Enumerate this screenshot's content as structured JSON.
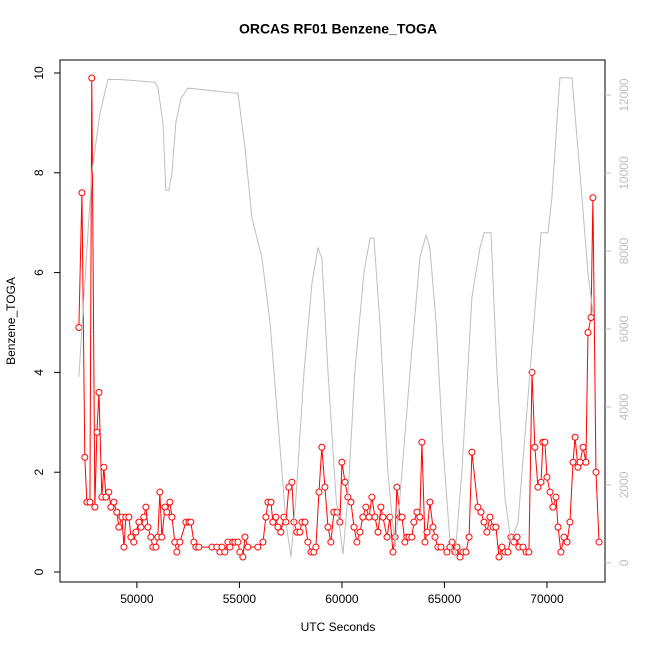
{
  "chart_data": {
    "type": "line",
    "title": "ORCAS RF01 Benzene_TOGA",
    "xlabel": "UTC Seconds",
    "ylabel": "Benzene_TOGA",
    "xlim": [
      46250,
      72830
    ],
    "ylim": [
      -0.2,
      10.26
    ],
    "y2lim": [
      -490,
      12900
    ],
    "xticks": [
      50000,
      55000,
      60000,
      65000,
      70000
    ],
    "yticks": [
      0,
      2,
      4,
      6,
      8,
      10
    ],
    "y2ticks": [
      0,
      2000,
      4000,
      6000,
      8000,
      10000,
      12000
    ],
    "series": [
      {
        "color": "#ff0000",
        "marker": "circle",
        "x": [
          47170,
          47320,
          47460,
          47560,
          47710,
          47800,
          47950,
          48050,
          48150,
          48290,
          48390,
          48490,
          48630,
          48730,
          48880,
          49020,
          49120,
          49270,
          49370,
          49460,
          49610,
          49710,
          49850,
          49950,
          50100,
          50200,
          50340,
          50440,
          50540,
          50680,
          50780,
          50930,
          51020,
          51120,
          51220,
          51370,
          51460,
          51610,
          51710,
          51850,
          51950,
          52100,
          52390,
          52540,
          52630,
          52780,
          52880,
          53020,
          53660,
          53900,
          54050,
          54150,
          54290,
          54440,
          54540,
          54680,
          54780,
          54930,
          55020,
          55170,
          55270,
          55410,
          55900,
          56150,
          56290,
          56390,
          56540,
          56630,
          56780,
          56880,
          57020,
          57170,
          57270,
          57410,
          57560,
          57660,
          57800,
          57950,
          58050,
          58200,
          58340,
          58490,
          58630,
          58730,
          58880,
          59020,
          59170,
          59320,
          59460,
          59610,
          59760,
          59900,
          60000,
          60150,
          60290,
          60440,
          60590,
          60730,
          60880,
          61020,
          61170,
          61320,
          61460,
          61610,
          61760,
          61900,
          62000,
          62200,
          62340,
          62490,
          62590,
          62680,
          62830,
          62930,
          63070,
          63170,
          63270,
          63410,
          63510,
          63660,
          63800,
          63900,
          64050,
          64150,
          64290,
          64440,
          64540,
          64680,
          64830,
          65120,
          65270,
          65370,
          65510,
          65610,
          65760,
          65900,
          66050,
          66200,
          66340,
          66630,
          66780,
          66930,
          67070,
          67220,
          67370,
          67510,
          67660,
          67800,
          67950,
          68100,
          68240,
          68390,
          68540,
          68630,
          68830,
          68980,
          69120,
          69270,
          69410,
          69560,
          69710,
          69800,
          69900,
          70000,
          70150,
          70290,
          70440,
          70540,
          70680,
          70830,
          70980,
          71120,
          71270,
          71370,
          71510,
          71610,
          71760,
          71900,
          72000,
          72150,
          72240,
          72390,
          72540
        ],
        "values": [
          4.9,
          7.6,
          2.3,
          1.4,
          1.4,
          9.9,
          1.3,
          2.8,
          3.6,
          1.5,
          2.1,
          1.5,
          1.6,
          1.3,
          1.4,
          1.2,
          0.9,
          1.1,
          0.5,
          1.1,
          1.1,
          0.7,
          0.6,
          0.8,
          1.0,
          0.9,
          1.1,
          1.3,
          0.9,
          0.7,
          0.5,
          0.5,
          0.7,
          1.6,
          0.7,
          1.3,
          1.2,
          1.4,
          1.1,
          0.6,
          0.4,
          0.6,
          1.0,
          1.0,
          1.0,
          0.6,
          0.5,
          0.5,
          0.5,
          0.5,
          0.4,
          0.5,
          0.4,
          0.6,
          0.5,
          0.6,
          0.6,
          0.6,
          0.4,
          0.3,
          0.7,
          0.5,
          0.5,
          0.6,
          1.1,
          1.4,
          1.4,
          1.0,
          1.1,
          0.9,
          0.8,
          1.1,
          1.0,
          1.7,
          1.8,
          1.0,
          0.8,
          0.8,
          1.0,
          1.0,
          0.6,
          0.4,
          0.4,
          0.5,
          1.6,
          2.5,
          1.7,
          0.9,
          0.6,
          1.2,
          1.2,
          1.0,
          2.2,
          1.8,
          1.5,
          1.4,
          0.9,
          0.6,
          0.8,
          1.1,
          1.3,
          1.1,
          1.5,
          1.1,
          0.8,
          1.3,
          1.1,
          0.7,
          1.1,
          0.4,
          0.7,
          1.7,
          1.1,
          1.1,
          0.6,
          0.7,
          0.7,
          0.7,
          1.0,
          1.2,
          1.1,
          2.6,
          0.6,
          0.8,
          1.4,
          0.9,
          0.7,
          0.5,
          0.5,
          0.4,
          0.5,
          0.6,
          0.4,
          0.5,
          0.3,
          0.4,
          0.4,
          0.7,
          2.4,
          1.3,
          1.2,
          1.0,
          0.8,
          1.1,
          0.9,
          0.9,
          0.3,
          0.5,
          0.4,
          0.4,
          0.7,
          0.6,
          0.7,
          0.5,
          0.5,
          0.4,
          0.4,
          4.0,
          2.5,
          1.7,
          1.8,
          2.6,
          2.6,
          1.9,
          1.6,
          1.3,
          1.5,
          0.9,
          0.4,
          0.7,
          0.6,
          1.0,
          2.2,
          2.7,
          2.1,
          2.2,
          2.5,
          2.2,
          4.8,
          5.1,
          7.5,
          2.0,
          0.6
        ]
      },
      {
        "color": "#bebebe",
        "axis": "y2",
        "x": [
          47170,
          47800,
          48200,
          48590,
          49170,
          50880,
          51020,
          51270,
          51410,
          51560,
          51710,
          51900,
          52150,
          52490,
          54780,
          54930,
          55270,
          55610,
          56100,
          56490,
          56880,
          57270,
          57510,
          57760,
          58150,
          58540,
          58830,
          59020,
          59320,
          59710,
          60050,
          60290,
          60630,
          61070,
          61370,
          61560,
          61850,
          62240,
          62590,
          62830,
          63320,
          63800,
          64100,
          64290,
          64590,
          64930,
          65270,
          65510,
          65850,
          66340,
          66730,
          66930,
          67270,
          67560,
          67950,
          68240,
          68590,
          68980,
          69460,
          69710,
          70050,
          70240,
          70630,
          71220,
          71610,
          72000,
          72240
        ],
        "values": [
          4770,
          10000,
          11540,
          12400,
          12400,
          12330,
          12200,
          11300,
          9560,
          9560,
          10000,
          11300,
          11920,
          12180,
          12050,
          12050,
          10660,
          8850,
          7820,
          6180,
          3620,
          1050,
          150,
          1690,
          4900,
          7180,
          8080,
          7820,
          4900,
          1690,
          220,
          1690,
          4900,
          7440,
          8330,
          8330,
          6180,
          2330,
          410,
          1690,
          4900,
          7820,
          8410,
          8080,
          6180,
          2970,
          540,
          150,
          2330,
          6810,
          8080,
          8470,
          8470,
          4900,
          1690,
          540,
          1050,
          3620,
          6810,
          8470,
          8470,
          9370,
          12440,
          12440,
          10000,
          7440,
          6420
        ]
      }
    ]
  }
}
